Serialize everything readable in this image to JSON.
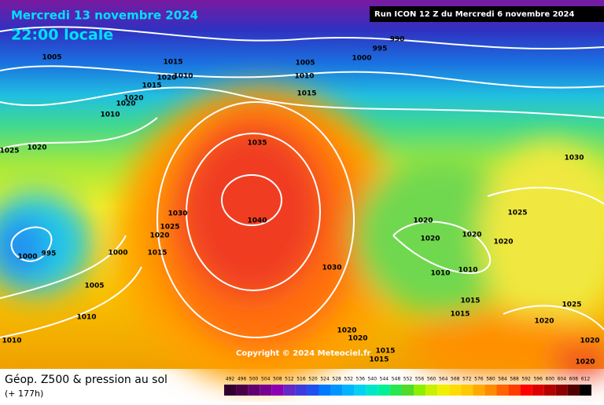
{
  "header": {
    "date": "Mercredi 13 novembre 2024",
    "time": "22:00 locale",
    "run": "Run ICON 12 Z du Mercredi 6 novembre 2024"
  },
  "copyright": "Copyright © 2024 Meteociel.fr",
  "footer": {
    "title": "Géop. Z500 & pression au sol",
    "lead": "(+ 177h)"
  },
  "isobar_labels": [
    1005,
    990,
    995,
    1000,
    1005,
    1010,
    1015,
    1015,
    1010,
    1020,
    1015,
    1020,
    1020,
    1010,
    1025,
    1020,
    1035,
    1040,
    1030,
    1025,
    1020,
    1015,
    1000,
    995,
    1000,
    1005,
    1010,
    1010,
    1030,
    1020,
    1020,
    1020,
    1020,
    1010,
    1010,
    1015,
    1015,
    1025,
    1030,
    1025,
    1020,
    1020,
    1020,
    1015,
    1015,
    1020,
    1020
  ],
  "scale": {
    "values": [
      492,
      496,
      500,
      504,
      508,
      512,
      516,
      520,
      524,
      528,
      532,
      536,
      540,
      544,
      548,
      552,
      556,
      560,
      564,
      568,
      572,
      576,
      580,
      584,
      588,
      592,
      596,
      600,
      604,
      608,
      612
    ],
    "colors": [
      "#300030",
      "#480048",
      "#600070",
      "#780090",
      "#8c00b4",
      "#6428c8",
      "#3c3cdc",
      "#1e50f0",
      "#0078ff",
      "#0096ff",
      "#00b4ff",
      "#00d2f0",
      "#00e6c8",
      "#00f096",
      "#28e650",
      "#50dc28",
      "#8cf000",
      "#c8f000",
      "#f0f000",
      "#ffdc00",
      "#ffc800",
      "#ffaa00",
      "#ff8c00",
      "#ff6400",
      "#ff3c00",
      "#ff0000",
      "#dc0000",
      "#b40000",
      "#8c0000",
      "#500000",
      "#000000"
    ]
  }
}
